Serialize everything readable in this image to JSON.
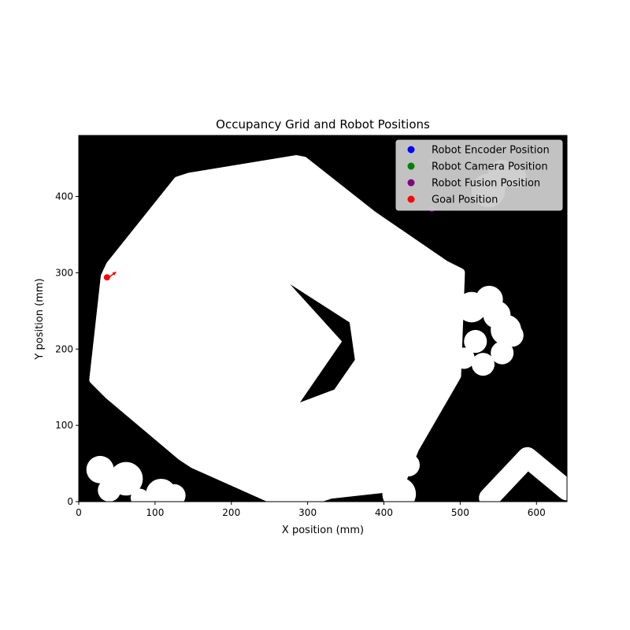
{
  "chart_data": {
    "type": "scatter",
    "title": "Occupancy Grid and Robot Positions",
    "xlabel": "X position (mm)",
    "ylabel": "Y position (mm)",
    "xlim": [
      0,
      640
    ],
    "ylim": [
      0,
      480
    ],
    "xticks": [
      0,
      100,
      200,
      300,
      400,
      500,
      600
    ],
    "yticks": [
      0,
      100,
      200,
      300,
      400
    ],
    "grid": false,
    "legend_position": "upper right",
    "background": {
      "kind": "occupancy-grid",
      "occupied_color": "#000000",
      "free_color": "#ffffff",
      "free_polygons": [
        [
          [
            20,
            160
          ],
          [
            35,
            295
          ],
          [
            42,
            310
          ],
          [
            130,
            420
          ],
          [
            145,
            425
          ],
          [
            285,
            448
          ],
          [
            295,
            446
          ],
          [
            385,
            375
          ],
          [
            480,
            310
          ],
          [
            500,
            300
          ],
          [
            495,
            165
          ],
          [
            440,
            70
          ],
          [
            420,
            20
          ],
          [
            330,
            10
          ],
          [
            300,
            0
          ],
          [
            262,
            0
          ],
          [
            150,
            50
          ],
          [
            135,
            60
          ],
          [
            40,
            140
          ]
        ]
      ],
      "occupied_polygons": [
        [
          [
            277,
            285
          ],
          [
            355,
            235
          ],
          [
            362,
            186
          ],
          [
            335,
            147
          ],
          [
            290,
            130
          ],
          [
            345,
            210
          ]
        ]
      ],
      "free_circles": [
        [
          28,
          42,
          18
        ],
        [
          40,
          15,
          15
        ],
        [
          62,
          30,
          22
        ],
        [
          108,
          10,
          20
        ],
        [
          80,
          5,
          12
        ],
        [
          125,
          8,
          15
        ],
        [
          420,
          10,
          22
        ],
        [
          432,
          48,
          15
        ],
        [
          537,
          408,
          22
        ],
        [
          555,
          430,
          18
        ],
        [
          573,
          425,
          14
        ],
        [
          515,
          255,
          20
        ],
        [
          538,
          265,
          18
        ],
        [
          548,
          245,
          18
        ],
        [
          560,
          225,
          20
        ],
        [
          568,
          218,
          15
        ],
        [
          555,
          195,
          15
        ],
        [
          530,
          180,
          15
        ],
        [
          505,
          188,
          14
        ],
        [
          520,
          210,
          15
        ]
      ],
      "free_strokes": [
        [
          [
            538,
            5
          ],
          [
            588,
            58
          ],
          [
            640,
            15
          ]
        ]
      ]
    },
    "series": [
      {
        "name": "Robot Encoder Position",
        "color": "#0000ff",
        "points": [
          [
            463,
            447
          ]
        ]
      },
      {
        "name": "Robot Camera Position",
        "color": "#008000",
        "points": [
          [
            462,
            445
          ]
        ]
      },
      {
        "name": "Robot Fusion Position",
        "color": "#800080",
        "points": [
          [
            463,
            384
          ]
        ]
      },
      {
        "name": "Goal Position",
        "color": "#ff0000",
        "points": [
          [
            37,
            294
          ]
        ]
      }
    ],
    "arrows": [
      {
        "color": "#ff0000",
        "from": [
          38,
          293
        ],
        "to": [
          49,
          301
        ]
      }
    ]
  }
}
